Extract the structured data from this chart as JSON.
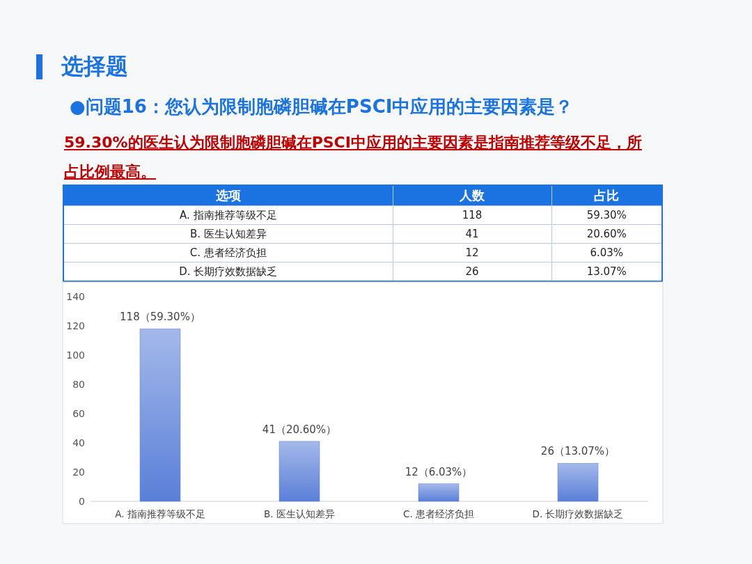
{
  "chart_data": [
    {
      "type": "other",
      "title": "选择题",
      "subtitle": "●问题16：您认为限制胞磷胆碱在PSCI中应用的主要因素是？",
      "annotations": [
        "59.30%的医生认为限制胞磷胆碱在PSCI中应用的主要因素是指南推荐等级不足，所占比例最高。",
        "选项",
        "人数",
        "占比",
        "A. 指南推荐等级不足",
        "118",
        "59.30%",
        "B. 医生认知差异",
        "41",
        "20.60%",
        "C. 患者经济负担",
        "12",
        "6.03%",
        "D. 长期疗效数据缺乏",
        "26",
        "13.07%"
      ]
    },
    {
      "type": "bar",
      "categories": [
        "A. 指南推荐等级不足",
        "B. 医生认知差异",
        "C. 患者经济负担",
        "D. 长期疗效数据缺乏"
      ],
      "values": [
        118,
        41,
        12,
        26
      ],
      "value_labels": [
        "118（59.30%）",
        "41（20.60%）",
        "12（6.03%）",
        "26（13.07%）"
      ],
      "color": "#5a7fd8",
      "ylim": [
        0,
        140
      ],
      "yticks": [
        0,
        20,
        40,
        60,
        80,
        100,
        120,
        140
      ]
    }
  ]
}
